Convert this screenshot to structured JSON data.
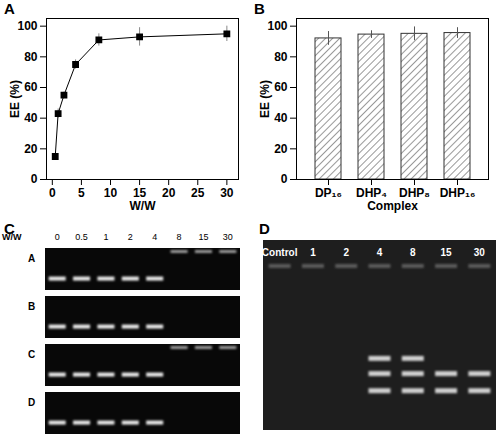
{
  "chart_data": [
    {
      "type": "line",
      "panel": "A",
      "x_label": "W/W",
      "y_label": "EE (%)",
      "x": [
        0.5,
        1,
        2,
        4,
        8,
        15,
        30
      ],
      "values": [
        15,
        43,
        55,
        75,
        91,
        93,
        95
      ],
      "errors": [
        2,
        3,
        2,
        3,
        4,
        6,
        5
      ],
      "xlim": [
        -1,
        32
      ],
      "xticks": [
        0,
        5,
        10,
        15,
        20,
        25,
        30
      ],
      "ylim": [
        0,
        105
      ],
      "yticks": [
        0,
        20,
        40,
        60,
        80,
        100
      ],
      "color": "#000000",
      "marker": "square"
    },
    {
      "type": "bar",
      "panel": "B",
      "x_label": "Complex",
      "y_label": "EE (%)",
      "categories": [
        "DP₁₆",
        "DHP₄",
        "DHP₈",
        "DHP₁₆"
      ],
      "values": [
        92,
        94.5,
        95,
        95.5
      ],
      "errors": [
        4.5,
        2.5,
        4.5,
        3.5
      ],
      "ylim": [
        0,
        105
      ],
      "yticks": [
        0,
        20,
        40,
        60,
        80,
        100
      ],
      "color": "#333333"
    },
    {
      "type": "gel",
      "panel": "C",
      "header": "W/W",
      "lanes": [
        "0",
        "0.5",
        "1",
        "2",
        "4",
        "8",
        "15",
        "30"
      ],
      "rows": [
        {
          "label": "A",
          "bands": [
            1,
            1,
            1,
            1,
            1,
            0,
            0,
            0
          ],
          "well": [
            false,
            false,
            false,
            false,
            false,
            true,
            true,
            true
          ]
        },
        {
          "label": "B",
          "bands": [
            1,
            1,
            1,
            1,
            1,
            0,
            0,
            0
          ],
          "well": [
            false,
            false,
            false,
            false,
            false,
            false,
            false,
            false
          ]
        },
        {
          "label": "C",
          "bands": [
            1,
            1,
            1,
            1,
            1,
            0,
            0,
            0
          ],
          "well": [
            false,
            false,
            false,
            false,
            false,
            true,
            true,
            true
          ]
        },
        {
          "label": "D",
          "bands": [
            1,
            1,
            1,
            1,
            1,
            0,
            0,
            0
          ],
          "well": [
            false,
            false,
            false,
            false,
            false,
            false,
            false,
            false
          ]
        }
      ]
    },
    {
      "type": "gel",
      "panel": "D",
      "lanes": [
        "Control",
        "1",
        "2",
        "4",
        "8",
        "15",
        "30"
      ],
      "bands": [
        0,
        0,
        0,
        3,
        3,
        2,
        2
      ],
      "well": [
        true,
        true,
        true,
        true,
        true,
        true,
        true
      ]
    }
  ]
}
